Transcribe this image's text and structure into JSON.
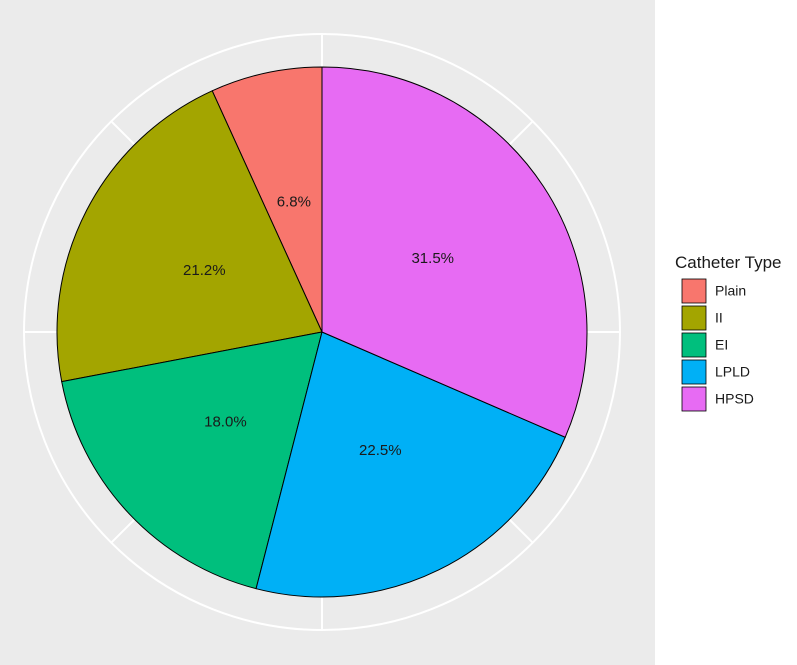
{
  "chart_data": {
    "type": "pie",
    "title": "",
    "legend": {
      "title": "Catheter Type",
      "position": "right"
    },
    "grid": true,
    "slices": [
      {
        "category": "Plain",
        "value": 6.8,
        "label": "6.8%",
        "color": "#F8766D"
      },
      {
        "category": "II",
        "value": 21.2,
        "label": "21.2%",
        "color": "#A3A500"
      },
      {
        "category": "EI",
        "value": 18.0,
        "label": "18.0%",
        "color": "#00BF7D"
      },
      {
        "category": "LPLD",
        "value": 22.5,
        "label": "22.5%",
        "color": "#00B0F6"
      },
      {
        "category": "HPSD",
        "value": 31.5,
        "label": "31.5%",
        "color": "#E76BF3"
      }
    ],
    "panel_background": "#EBEBEB",
    "grid_color": "#FFFFFF"
  }
}
